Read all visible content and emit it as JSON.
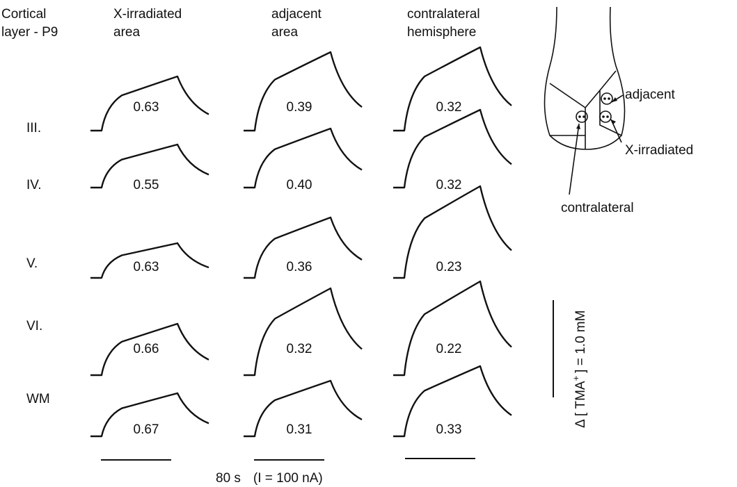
{
  "row_heading": [
    "Cortical",
    "layer - P9"
  ],
  "columns": [
    {
      "title": [
        "X-irradiated",
        "area"
      ],
      "values": [
        "0.63",
        "0.55",
        "0.63",
        "0.66",
        "0.67"
      ]
    },
    {
      "title": [
        "adjacent",
        "area"
      ],
      "values": [
        "0.39",
        "0.40",
        "0.36",
        "0.32",
        "0.31"
      ]
    },
    {
      "title": [
        "contralateral",
        "hemisphere"
      ],
      "values": [
        "0.32",
        "0.32",
        "0.23",
        "0.22",
        "0.33"
      ]
    }
  ],
  "rows": [
    "III.",
    "IV.",
    "V.",
    "VI.",
    "WM"
  ],
  "time_scale": {
    "duration": "80 s",
    "current": "(I = 100 nA)"
  },
  "concentration_scale": {
    "prefix": "Δ [ TMA",
    "superscript": "+",
    "suffix": "] = 1.0 mM"
  },
  "diagram": {
    "labels": [
      "adjacent",
      "X-irradiated",
      "contralateral"
    ]
  }
}
